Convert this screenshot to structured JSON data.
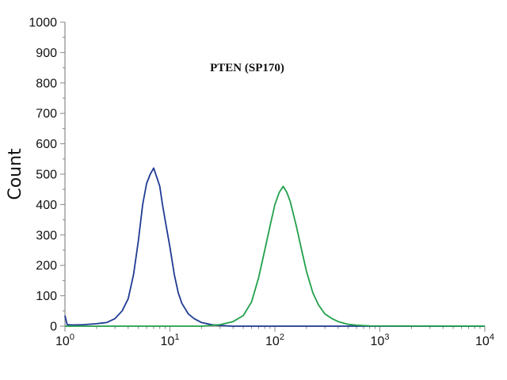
{
  "chart_data": {
    "type": "line",
    "title": "PTEN (SP170)",
    "ylabel": "Count",
    "xlabel": "",
    "xscale": "log",
    "xlim": [
      1,
      10000
    ],
    "ylim": [
      0,
      1000
    ],
    "y_ticks": [
      "0",
      "100",
      "200",
      "300",
      "400",
      "500",
      "600",
      "700",
      "800",
      "900",
      "1000"
    ],
    "x_ticks": [
      {
        "base": "10",
        "exp": "0"
      },
      {
        "base": "10",
        "exp": "1"
      },
      {
        "base": "10",
        "exp": "2"
      },
      {
        "base": "10",
        "exp": "3"
      },
      {
        "base": "10",
        "exp": "4"
      }
    ],
    "grid": false,
    "legend": "none",
    "series": [
      {
        "color": "#1f3a93",
        "x": [
          1,
          1.05,
          1.2,
          1.5,
          2,
          2.5,
          3,
          3.5,
          4,
          4.5,
          5,
          5.5,
          6,
          6.5,
          7,
          7.5,
          8,
          8.5,
          9,
          10,
          11,
          12,
          13,
          15,
          17,
          20,
          25,
          30,
          40,
          10000
        ],
        "y": [
          35,
          5,
          4,
          5,
          8,
          12,
          25,
          50,
          90,
          170,
          280,
          400,
          470,
          500,
          520,
          490,
          460,
          400,
          350,
          260,
          170,
          110,
          75,
          40,
          25,
          12,
          5,
          2,
          0,
          0
        ]
      },
      {
        "color": "#22a04b",
        "x": [
          1,
          20,
          30,
          40,
          50,
          60,
          70,
          80,
          90,
          100,
          110,
          120,
          130,
          140,
          160,
          180,
          200,
          230,
          260,
          300,
          350,
          400,
          500,
          600,
          800,
          10000
        ],
        "y": [
          0,
          0,
          5,
          15,
          35,
          80,
          160,
          250,
          330,
          400,
          440,
          460,
          440,
          410,
          330,
          250,
          180,
          110,
          70,
          40,
          25,
          15,
          6,
          3,
          1,
          0
        ]
      }
    ]
  },
  "colors": {
    "axis": "#888888",
    "text": "#111111"
  }
}
